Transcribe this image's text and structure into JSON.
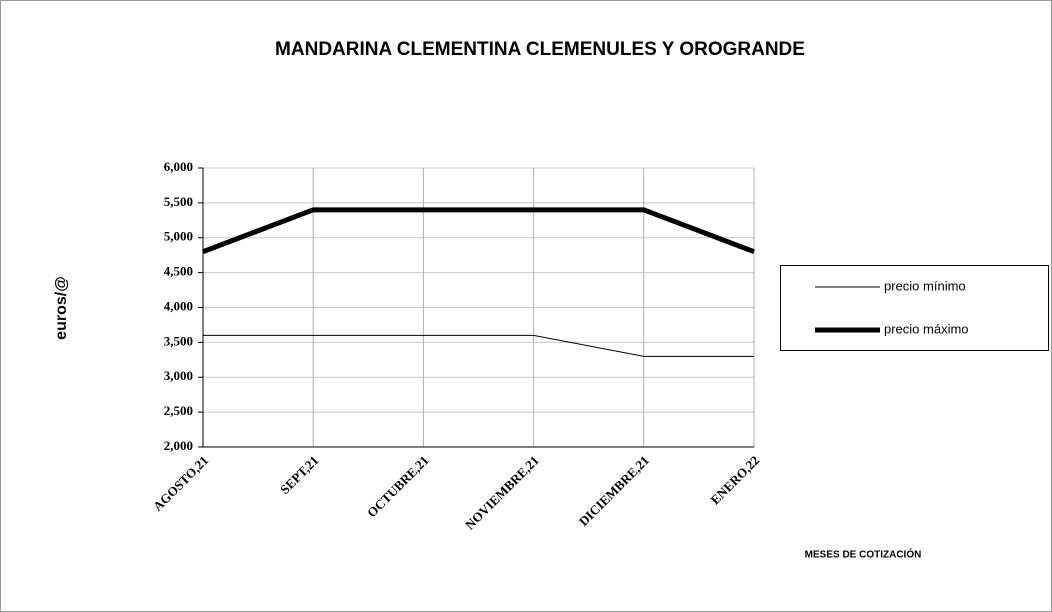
{
  "chart_data": {
    "type": "line",
    "title": "MANDARINA CLEMENTINA CLEMENULES Y OROGRANDE",
    "y_label": "euros/@",
    "x_label": "MESES DE COTIZACIÓN",
    "categories": [
      "AGOSTO,21",
      "SEPT,21",
      "OCTUBRE,21",
      "NOVIEMBRE,21",
      "DICIEMBRE,21",
      "ENERO,22"
    ],
    "series": [
      {
        "name": "precio mínimo",
        "color": "#000000",
        "values": [
          3.6,
          3.6,
          3.6,
          3.6,
          3.3,
          3.3
        ]
      },
      {
        "name": "precio máximo",
        "color": "#000000",
        "values": [
          4.8,
          5.4,
          5.4,
          5.4,
          5.4,
          4.8
        ]
      }
    ],
    "ylim": [
      2,
      6
    ],
    "yticks": [
      {
        "value": 2,
        "label": "2,000"
      },
      {
        "value": 2.5,
        "label": "2,500"
      },
      {
        "value": 3,
        "label": "3,000"
      },
      {
        "value": 3.5,
        "label": "3,500"
      },
      {
        "value": 4,
        "label": "4,000"
      },
      {
        "value": 4.5,
        "label": "4,500"
      },
      {
        "value": 5,
        "label": "5,000"
      },
      {
        "value": 5.5,
        "label": "5,500"
      },
      {
        "value": 6,
        "label": "6,000"
      }
    ],
    "grid": true,
    "legend": "right"
  }
}
